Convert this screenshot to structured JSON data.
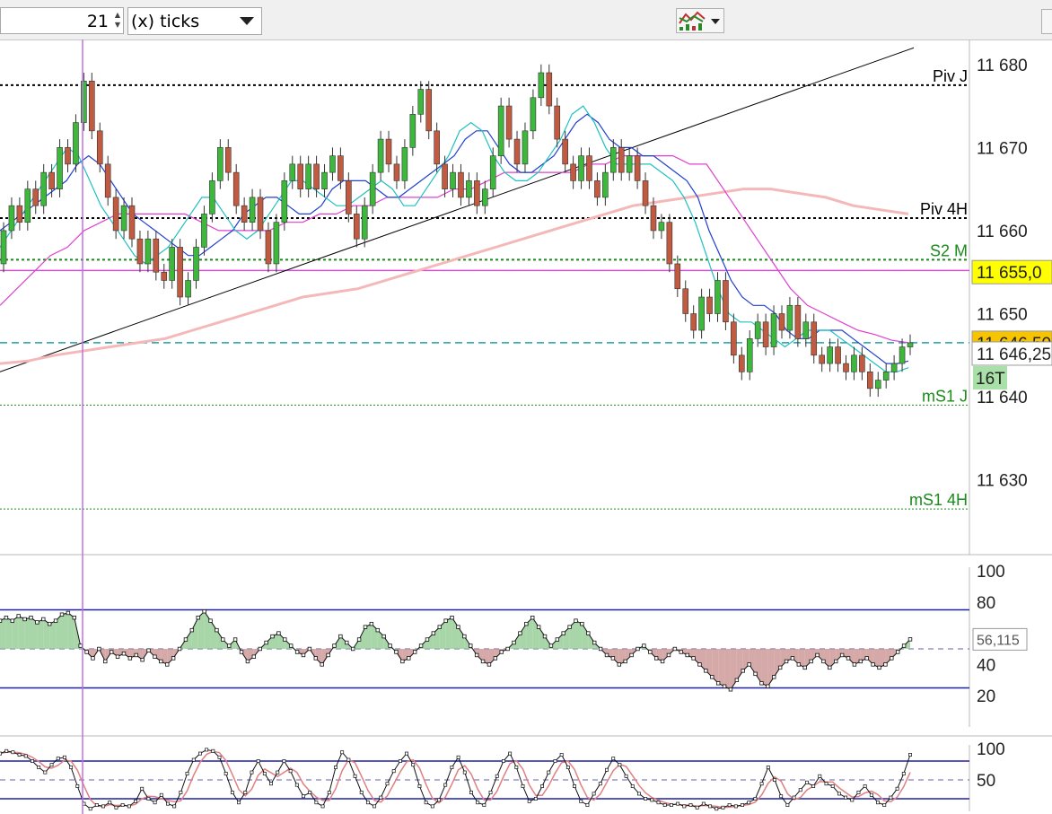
{
  "toolbar": {
    "period_value": "21",
    "unit_value": "(x) ticks"
  },
  "chart_data": {
    "type": "candlestick",
    "main": {
      "y_ticks": [
        "11 680",
        "11 670",
        "11 660",
        "11 650",
        "11 640",
        "11 630"
      ],
      "ylim": [
        11621,
        11683
      ],
      "candles": [
        [
          11656,
          11660
        ],
        [
          11660,
          11663
        ],
        [
          11663,
          11661
        ],
        [
          11661,
          11665
        ],
        [
          11665,
          11663
        ],
        [
          11663,
          11667
        ],
        [
          11667,
          11665
        ],
        [
          11665,
          11670
        ],
        [
          11670,
          11668
        ],
        [
          11668,
          11673
        ],
        [
          11673,
          11678
        ],
        [
          11678,
          11672
        ],
        [
          11672,
          11668
        ],
        [
          11668,
          11664
        ],
        [
          11664,
          11660
        ],
        [
          11660,
          11663
        ],
        [
          11663,
          11659
        ],
        [
          11659,
          11656
        ],
        [
          11656,
          11659
        ],
        [
          11659,
          11655
        ],
        [
          11655,
          11654
        ],
        [
          11654,
          11658
        ],
        [
          11658,
          11652
        ],
        [
          11652,
          11654
        ],
        [
          11654,
          11658
        ],
        [
          11658,
          11662
        ],
        [
          11662,
          11666
        ],
        [
          11666,
          11670
        ],
        [
          11670,
          11667
        ],
        [
          11667,
          11663
        ],
        [
          11663,
          11661
        ],
        [
          11661,
          11664
        ],
        [
          11664,
          11660
        ],
        [
          11660,
          11656
        ],
        [
          11656,
          11661
        ],
        [
          11661,
          11666
        ],
        [
          11666,
          11668
        ],
        [
          11668,
          11665
        ],
        [
          11665,
          11668
        ],
        [
          11668,
          11665
        ],
        [
          11665,
          11667
        ],
        [
          11667,
          11669
        ],
        [
          11669,
          11666
        ],
        [
          11666,
          11662
        ],
        [
          11662,
          11659
        ],
        [
          11659,
          11663
        ],
        [
          11663,
          11667
        ],
        [
          11667,
          11671
        ],
        [
          11671,
          11668
        ],
        [
          11668,
          11666
        ],
        [
          11666,
          11670
        ],
        [
          11670,
          11674
        ],
        [
          11674,
          11677
        ],
        [
          11677,
          11672
        ],
        [
          11672,
          11668
        ],
        [
          11668,
          11665
        ],
        [
          11665,
          11667
        ],
        [
          11667,
          11664
        ],
        [
          11664,
          11666
        ],
        [
          11666,
          11663
        ],
        [
          11663,
          11665
        ],
        [
          11665,
          11669
        ],
        [
          11669,
          11675
        ],
        [
          11675,
          11671
        ],
        [
          11671,
          11668
        ],
        [
          11668,
          11672
        ],
        [
          11672,
          11676
        ],
        [
          11676,
          11679
        ],
        [
          11679,
          11675
        ],
        [
          11675,
          11671
        ],
        [
          11671,
          11668
        ],
        [
          11668,
          11666
        ],
        [
          11666,
          11669
        ],
        [
          11669,
          11666
        ],
        [
          11666,
          11664
        ],
        [
          11664,
          11667
        ],
        [
          11667,
          11670
        ],
        [
          11670,
          11667
        ],
        [
          11667,
          11669
        ],
        [
          11669,
          11666
        ],
        [
          11666,
          11663
        ],
        [
          11663,
          11660
        ],
        [
          11660,
          11661
        ],
        [
          11661,
          11656
        ],
        [
          11656,
          11653
        ],
        [
          11653,
          11650
        ],
        [
          11650,
          11648
        ],
        [
          11648,
          11652
        ],
        [
          11652,
          11650
        ],
        [
          11650,
          11654
        ],
        [
          11654,
          11649
        ],
        [
          11649,
          11645
        ],
        [
          11645,
          11643
        ],
        [
          11643,
          11647
        ],
        [
          11647,
          11649
        ],
        [
          11649,
          11646
        ],
        [
          11646,
          11650
        ],
        [
          11650,
          11648
        ],
        [
          11648,
          11651
        ],
        [
          11651,
          11647
        ],
        [
          11647,
          11649
        ],
        [
          11649,
          11645
        ],
        [
          11645,
          11644
        ],
        [
          11644,
          11646
        ],
        [
          11646,
          11644
        ],
        [
          11644,
          11643
        ],
        [
          11643,
          11645
        ],
        [
          11645,
          11643
        ],
        [
          11643,
          11641
        ],
        [
          11641,
          11642
        ],
        [
          11642,
          11643
        ],
        [
          11643,
          11644
        ],
        [
          11644,
          11646
        ],
        [
          11646,
          11646.5
        ]
      ],
      "ma_blue": [
        11660,
        11661,
        11662,
        11663,
        11664,
        11665,
        11666,
        11668,
        11669,
        11668,
        11666,
        11664,
        11662,
        11661,
        11660,
        11659,
        11658,
        11657,
        11657,
        11658,
        11659,
        11660,
        11662,
        11663,
        11664,
        11664,
        11663,
        11662,
        11662,
        11663,
        11665,
        11666,
        11666,
        11666,
        11665,
        11664,
        11664,
        11665,
        11666,
        11667,
        11668,
        11669,
        11671,
        11672,
        11672,
        11670,
        11668,
        11667,
        11667,
        11668,
        11669,
        11671,
        11673,
        11674,
        11673,
        11671,
        11670,
        11670,
        11669,
        11669,
        11668,
        11667,
        11666,
        11664,
        11660,
        11657,
        11654,
        11652,
        11651,
        11651,
        11650,
        11648,
        11647,
        11647,
        11648,
        11648,
        11648,
        11647,
        11646,
        11645,
        11644,
        11644,
        11644.3
      ],
      "ma_cyan": [
        11658,
        11660,
        11662,
        11664,
        11666,
        11668,
        11670,
        11669,
        11666,
        11663,
        11661,
        11659,
        11657,
        11656,
        11657,
        11658,
        11660,
        11662,
        11664,
        11664,
        11662,
        11660,
        11659,
        11660,
        11662,
        11664,
        11666,
        11666,
        11665,
        11664,
        11663,
        11663,
        11664,
        11665,
        11666,
        11665,
        11663,
        11663,
        11665,
        11667,
        11669,
        11672,
        11673,
        11672,
        11669,
        11667,
        11666,
        11666,
        11667,
        11669,
        11671,
        11674,
        11675,
        11673,
        11670,
        11668,
        11668,
        11668,
        11668,
        11667,
        11666,
        11664,
        11661,
        11657,
        11653,
        11650,
        11649,
        11649,
        11648,
        11647,
        11646,
        11647,
        11648,
        11648,
        11648,
        11647,
        11646,
        11645,
        11644,
        11643,
        11643,
        11643.5
      ],
      "ma_magenta": [
        11651,
        11653,
        11655,
        11657,
        11658,
        11660,
        11661,
        11662,
        11662,
        11662,
        11662,
        11662,
        11661,
        11660,
        11660,
        11660,
        11660,
        11661,
        11661,
        11662,
        11662,
        11663,
        11663,
        11664,
        11664,
        11664,
        11664,
        11665,
        11665,
        11666,
        11667,
        11667,
        11667,
        11667,
        11667,
        11668,
        11668,
        11669,
        11669,
        11669,
        11669,
        11668,
        11668,
        11665,
        11662,
        11659,
        11656,
        11653,
        11651,
        11650,
        11649,
        11648,
        11647.5,
        11646.8,
        11646.5
      ],
      "ma_pink": [
        11644,
        11644.3,
        11645,
        11645.5,
        11646,
        11646.5,
        11647,
        11648,
        11649,
        11650,
        11651,
        11652,
        11652.5,
        11653,
        11654,
        11655,
        11656,
        11657,
        11658,
        11659,
        11660,
        11661,
        11662,
        11663,
        11663.5,
        11664,
        11664.5,
        11665,
        11665,
        11664.5,
        11664,
        11663,
        11662.5,
        11662
      ],
      "trendline": [
        11643,
        11682
      ],
      "levels": [
        {
          "label": "Piv J",
          "value": 11677.5,
          "color": "#000000",
          "style": "dotted"
        },
        {
          "label": "Piv 4H",
          "value": 11661.5,
          "color": "#000000",
          "style": "dotted"
        },
        {
          "label": "S2 M",
          "value": 11656.5,
          "color": "#1a8a1a",
          "style": "dotted"
        },
        {
          "label": "mS1 J",
          "value": 11639,
          "color": "#1a8a1a",
          "style": "dotted-thin"
        },
        {
          "label": "mS1 4H",
          "value": 11626.5,
          "color": "#1a8a1a",
          "style": "dotted-thin"
        }
      ],
      "hline_magenta": 11655.2,
      "hline_last": 11646.5,
      "price_tags": [
        {
          "label": "11 655,0",
          "value": 11655,
          "bg": "#ffff00"
        },
        {
          "label": "11 646,50",
          "value": 11646.5,
          "bg": "#f6c400"
        },
        {
          "label": "11 646,25",
          "value": 11645.2,
          "bg": "#ffffff"
        }
      ],
      "tick_tag": "16T"
    },
    "rsi": {
      "y_ticks": [
        "100",
        "80",
        "40",
        "20"
      ],
      "ylim": [
        0,
        100
      ],
      "bands": [
        75,
        25
      ],
      "mid": 50,
      "value_label": "56,115",
      "values": [
        68,
        70,
        68,
        71,
        69,
        70,
        67,
        69,
        66,
        68,
        72,
        73,
        70,
        52,
        48,
        44,
        50,
        42,
        48,
        45,
        47,
        44,
        46,
        43,
        49,
        45,
        42,
        40,
        44,
        50,
        56,
        62,
        70,
        74,
        68,
        62,
        56,
        52,
        56,
        48,
        42,
        45,
        50,
        54,
        58,
        60,
        56,
        52,
        48,
        46,
        50,
        44,
        40,
        46,
        52,
        58,
        54,
        50,
        56,
        64,
        66,
        62,
        58,
        52,
        48,
        42,
        44,
        48,
        52,
        56,
        60,
        64,
        68,
        70,
        64,
        58,
        52,
        46,
        42,
        40,
        44,
        48,
        50,
        54,
        60,
        66,
        70,
        64,
        58,
        52,
        56,
        60,
        64,
        68,
        66,
        60,
        54,
        50,
        46,
        44,
        40,
        42,
        46,
        50,
        52,
        48,
        44,
        42,
        46,
        50,
        48,
        46,
        44,
        40,
        36,
        32,
        28,
        26,
        24,
        30,
        36,
        40,
        34,
        28,
        26,
        32,
        38,
        42,
        44,
        40,
        38,
        42,
        46,
        42,
        38,
        42,
        46,
        44,
        40,
        42,
        44,
        40,
        38,
        40,
        44,
        48,
        52,
        56.1
      ]
    },
    "stoch": {
      "y_ticks": [
        "100",
        "50"
      ],
      "ylim": [
        0,
        100
      ],
      "bands": [
        80,
        20
      ],
      "mid": 50,
      "values": [
        92,
        96,
        94,
        90,
        88,
        80,
        70,
        62,
        74,
        84,
        86,
        70,
        40,
        12,
        4,
        10,
        8,
        14,
        6,
        10,
        8,
        16,
        36,
        20,
        14,
        26,
        12,
        8,
        30,
        60,
        82,
        92,
        98,
        96,
        86,
        60,
        30,
        14,
        30,
        62,
        80,
        60,
        44,
        62,
        80,
        64,
        42,
        24,
        30,
        14,
        8,
        30,
        70,
        94,
        82,
        56,
        30,
        14,
        8,
        22,
        44,
        64,
        80,
        92,
        74,
        40,
        14,
        8,
        18,
        42,
        70,
        86,
        62,
        30,
        14,
        10,
        30,
        56,
        80,
        92,
        70,
        40,
        16,
        20,
        40,
        62,
        80,
        90,
        70,
        40,
        16,
        10,
        28,
        44,
        66,
        84,
        74,
        56,
        40,
        28,
        20,
        18,
        14,
        10,
        10,
        12,
        8,
        10,
        6,
        12,
        8,
        4,
        6,
        10,
        8,
        10,
        14,
        20,
        44,
        70,
        50,
        24,
        10,
        22,
        34,
        46,
        40,
        56,
        44,
        40,
        28,
        22,
        18,
        30,
        40,
        26,
        14,
        10,
        22,
        36,
        60,
        90
      ]
    }
  }
}
